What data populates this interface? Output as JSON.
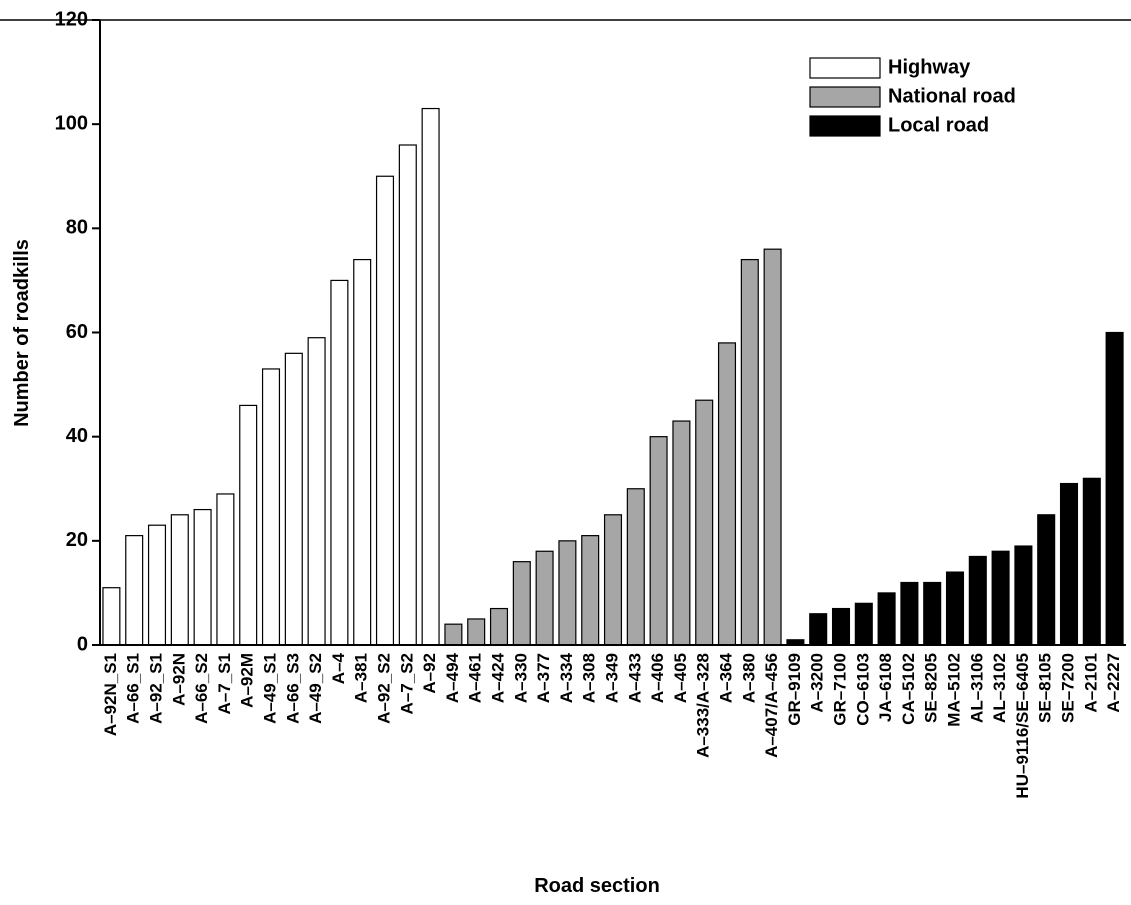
{
  "chart_data": {
    "type": "bar",
    "x_label": "Road section",
    "y_label": "Number of roadkills",
    "categories": [
      "A–92N_S1",
      "A–66_S1",
      "A–92_S1",
      "A–92N",
      "A–66_S2",
      "A–7_S1",
      "A–92M",
      "A–49_S1",
      "A–66_S3",
      "A–49_S2",
      "A–4",
      "A–381",
      "A–92_S2",
      "A–7_S2",
      "A–92",
      "A–494",
      "A–461",
      "A–424",
      "A–330",
      "A–377",
      "A–334",
      "A–308",
      "A–349",
      "A–433",
      "A–406",
      "A–405",
      "A–333/A–328",
      "A–364",
      "A–380",
      "A–407/A–456",
      "GR–9109",
      "A–3200",
      "GR–7100",
      "CO–6103",
      "JA–6108",
      "CA–5102",
      "SE–8205",
      "MA–5102",
      "AL–3106",
      "AL–3102",
      "HU–9116/SE–6405",
      "SE–8105",
      "SE–7200",
      "A–2101",
      "A–2227"
    ],
    "series": [
      {
        "name": "Highway",
        "color": "#ffffff",
        "values": [
          11,
          21,
          23,
          25,
          26,
          29,
          46,
          53,
          56,
          59,
          70,
          74,
          90,
          96,
          103,
          null,
          null,
          null,
          null,
          null,
          null,
          null,
          null,
          null,
          null,
          null,
          null,
          null,
          null,
          null,
          null,
          null,
          null,
          null,
          null,
          null,
          null,
          null,
          null,
          null,
          null,
          null,
          null,
          null,
          null
        ]
      },
      {
        "name": "National road",
        "color": "#a6a6a6",
        "values": [
          null,
          null,
          null,
          null,
          null,
          null,
          null,
          null,
          null,
          null,
          null,
          null,
          null,
          null,
          null,
          4,
          5,
          7,
          16,
          18,
          20,
          21,
          25,
          30,
          40,
          43,
          47,
          58,
          74,
          76,
          null,
          null,
          null,
          null,
          null,
          null,
          null,
          null,
          null,
          null,
          null,
          null,
          null,
          null,
          null
        ]
      },
      {
        "name": "Local road",
        "color": "#000000",
        "values": [
          null,
          null,
          null,
          null,
          null,
          null,
          null,
          null,
          null,
          null,
          null,
          null,
          null,
          null,
          null,
          null,
          null,
          null,
          null,
          null,
          null,
          null,
          null,
          null,
          null,
          null,
          null,
          null,
          null,
          null,
          1,
          6,
          7,
          8,
          10,
          12,
          12,
          14,
          17,
          18,
          19,
          25,
          31,
          32,
          60
        ]
      }
    ],
    "ylim": [
      0,
      120
    ],
    "yticks": [
      0,
      20,
      40,
      60,
      80,
      100,
      120
    ],
    "legend": "upper right"
  }
}
